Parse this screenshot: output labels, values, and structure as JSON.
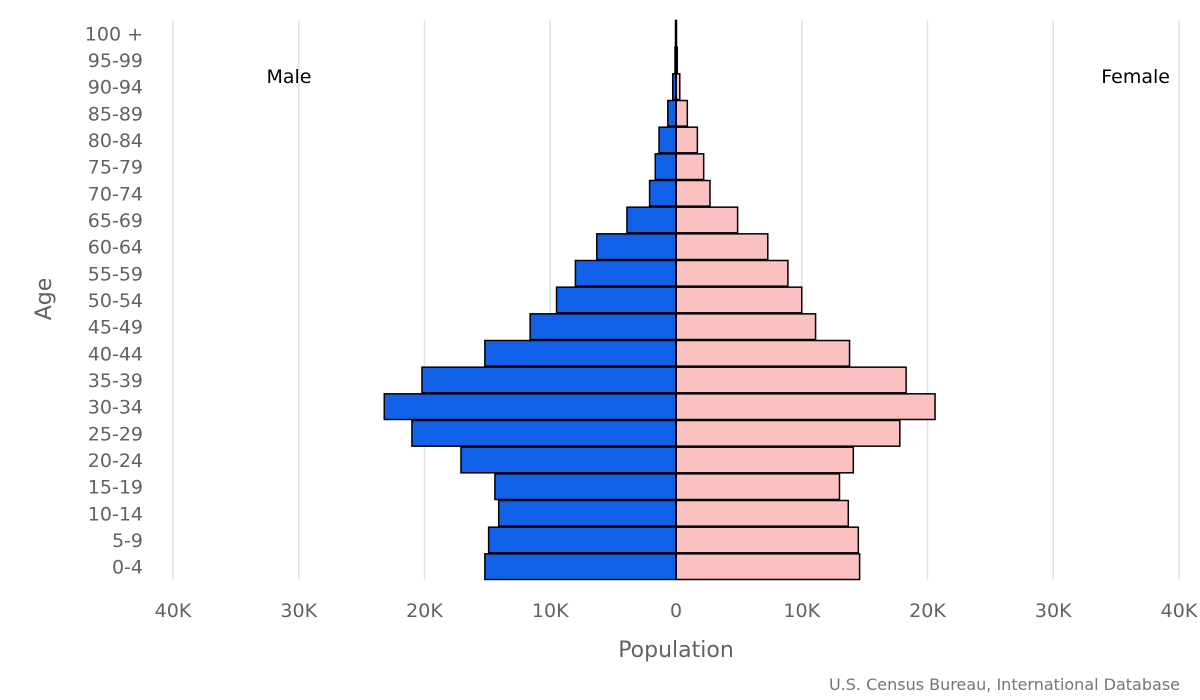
{
  "chart_data": {
    "type": "bar",
    "orientation": "horizontal-population-pyramid",
    "categories": [
      "0-4",
      "5-9",
      "10-14",
      "15-19",
      "20-24",
      "25-29",
      "30-34",
      "35-39",
      "40-44",
      "45-49",
      "50-54",
      "55-59",
      "60-64",
      "65-69",
      "70-74",
      "75-79",
      "80-84",
      "85-89",
      "90-94",
      "95-99",
      "100 +"
    ],
    "series": [
      {
        "name": "Male",
        "color": "#1162e8",
        "values": [
          15200,
          14900,
          14100,
          14400,
          17100,
          21000,
          23200,
          20200,
          15200,
          11600,
          9500,
          8000,
          6300,
          3900,
          2100,
          1650,
          1350,
          650,
          260,
          80,
          40
        ]
      },
      {
        "name": "Female",
        "color": "#fbc0c0",
        "values": [
          14600,
          14500,
          13700,
          13000,
          14100,
          17800,
          20600,
          18300,
          13800,
          11100,
          10000,
          8900,
          7300,
          4900,
          2700,
          2200,
          1700,
          900,
          300,
          100,
          40
        ]
      }
    ],
    "xlabel": "Population",
    "ylabel": "Age",
    "xlim": [
      -40000,
      40000
    ],
    "xticks": [
      {
        "value": -40000,
        "label": "40K"
      },
      {
        "value": -30000,
        "label": "30K"
      },
      {
        "value": -20000,
        "label": "20K"
      },
      {
        "value": -10000,
        "label": "10K"
      },
      {
        "value": 0,
        "label": "0"
      },
      {
        "value": 10000,
        "label": "10K"
      },
      {
        "value": 20000,
        "label": "20K"
      },
      {
        "value": 30000,
        "label": "30K"
      },
      {
        "value": 40000,
        "label": "40K"
      }
    ],
    "grid": true,
    "side_labels": {
      "left": "Male",
      "right": "Female"
    },
    "credit": "U.S. Census Bureau, International Database"
  }
}
